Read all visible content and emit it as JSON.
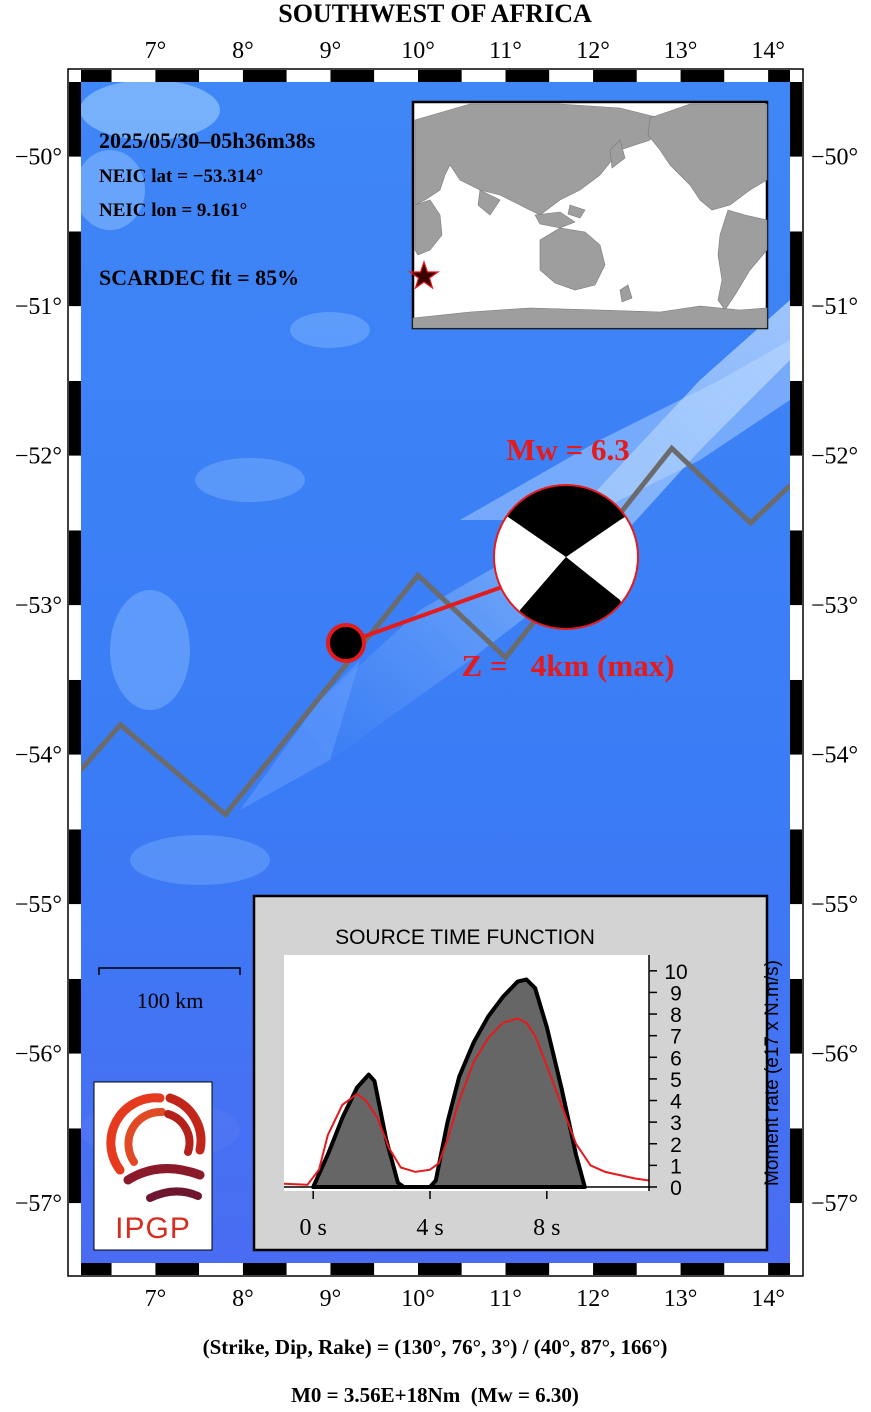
{
  "title": "SOUTHWEST OF AFRICA",
  "event": {
    "datetime": "2025/05/30–05h36m38s",
    "lat_text": "NEIC lat  = −53.314°",
    "lon_text": "NEIC lon = 9.161°",
    "fit_text": "SCARDEC fit = 85%",
    "lat": -53.314,
    "lon": 9.161
  },
  "magnitude": {
    "label": "Mw = 6.3",
    "depth_label": "Z =   4km (max)"
  },
  "map": {
    "lon_range": [
      6.15,
      14.25
    ],
    "lat_range": [
      -49.5,
      -57.4
    ],
    "lon_ticks": [
      "7°",
      "8°",
      "9°",
      "10°",
      "11°",
      "12°",
      "13°",
      "14°"
    ],
    "lon_values": [
      7,
      8,
      9,
      10,
      11,
      12,
      13,
      14
    ],
    "lat_ticks": [
      "−50°",
      "−51°",
      "−52°",
      "−53°",
      "−54°",
      "−55°",
      "−56°",
      "−57°"
    ],
    "lat_values": [
      -50,
      -51,
      -52,
      -53,
      -54,
      -55,
      -56,
      -57
    ],
    "plate_boundary": [
      [
        6.15,
        -54.1
      ],
      [
        6.6,
        -53.8
      ],
      [
        7.8,
        -54.4
      ],
      [
        10.0,
        -52.8
      ],
      [
        11.0,
        -53.35
      ],
      [
        12.9,
        -51.95
      ],
      [
        13.8,
        -52.45
      ],
      [
        14.25,
        -52.2
      ]
    ],
    "ocean_color": "#3a7df5",
    "boundary_color": "#6b6b6b",
    "epicenter_color": "#e41a1c"
  },
  "scale_bar": {
    "label": "100 km"
  },
  "logo": {
    "text": "IPGP",
    "color": "#d62d20"
  },
  "stf": {
    "title": "SOURCE TIME FUNCTION",
    "ylabel": "Moment rate (e17 x N.m/s)",
    "x_tick_labels": [
      "0 s",
      "4 s",
      "8 s"
    ],
    "x_tick_values": [
      0,
      4,
      8
    ],
    "y_tick_labels": [
      "0",
      "1",
      "2",
      "3",
      "4",
      "5",
      "6",
      "7",
      "8",
      "9",
      "10"
    ],
    "y_tick_values": [
      0,
      1,
      2,
      3,
      4,
      5,
      6,
      7,
      8,
      9,
      10
    ]
  },
  "chart_data": {
    "type": "area",
    "x_range": [
      -1,
      11.5
    ],
    "ylim": [
      0,
      10.5
    ],
    "series": [
      {
        "fill": "#666666",
        "x": [
          0.0,
          0.5,
          1.0,
          1.5,
          1.9,
          2.1,
          2.5,
          2.9,
          3.1,
          4.0,
          4.2,
          4.6,
          5.0,
          5.5,
          6.0,
          6.5,
          7.0,
          7.3,
          7.6,
          8.0,
          8.5,
          9.0,
          9.3
        ],
        "y": [
          0.0,
          1.5,
          3.2,
          4.6,
          5.2,
          4.9,
          2.2,
          0.2,
          0.0,
          0.0,
          0.3,
          3.0,
          5.1,
          6.7,
          7.9,
          8.8,
          9.5,
          9.6,
          9.2,
          7.4,
          4.6,
          1.5,
          0.0
        ]
      },
      {
        "color": "#e41a1c",
        "x": [
          -1.0,
          -0.2,
          0.2,
          0.5,
          1.0,
          1.5,
          1.8,
          2.2,
          2.6,
          3.0,
          3.5,
          4.0,
          4.3,
          4.6,
          5.0,
          5.5,
          6.0,
          6.5,
          7.0,
          7.3,
          7.6,
          8.0,
          8.5,
          9.0,
          9.5,
          10.0,
          10.5,
          11.0,
          11.5
        ],
        "y": [
          0.15,
          0.1,
          0.8,
          2.4,
          3.8,
          4.3,
          4.0,
          3.2,
          1.8,
          0.9,
          0.7,
          0.8,
          1.1,
          2.2,
          4.0,
          5.8,
          6.9,
          7.6,
          7.8,
          7.6,
          7.0,
          5.6,
          3.8,
          2.0,
          1.0,
          0.7,
          0.55,
          0.4,
          0.3
        ]
      }
    ]
  },
  "mechanism": {
    "text": "(Strike, Dip, Rake) = (130°, 76°, 3°) / (40°, 87°, 166°)",
    "m0_text": "M0 = 3.56E+18Nm  (Mw = 6.30)"
  }
}
